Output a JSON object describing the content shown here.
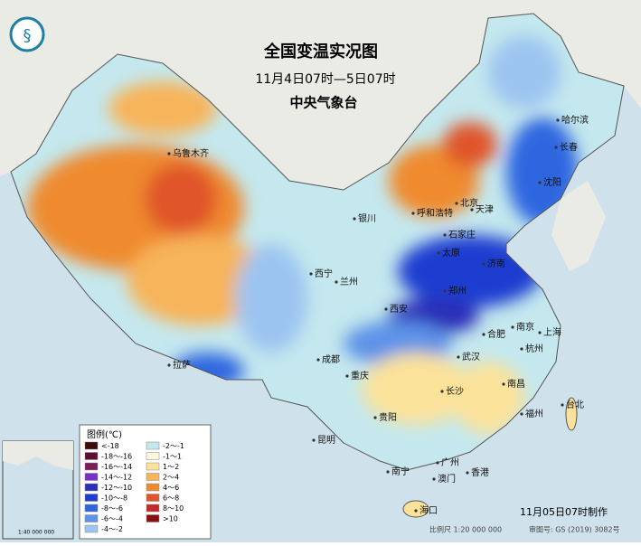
{
  "header": {
    "title": "全国变温实况图",
    "subtitle": "11月4日07时—5日07时",
    "agency": "中央气象台"
  },
  "legend": {
    "title": "图例(℃)",
    "items": [
      {
        "label": "<-18",
        "color": "#3d0a0a"
      },
      {
        "label": "-18～-16",
        "color": "#5c1030"
      },
      {
        "label": "-16～-14",
        "color": "#7a1f5a"
      },
      {
        "label": "-14～-12",
        "color": "#7a2fc8"
      },
      {
        "label": "-12～-10",
        "color": "#2a2fb8"
      },
      {
        "label": "-10～-8",
        "color": "#1f3ed0"
      },
      {
        "label": "-8～-6",
        "color": "#2f66e0"
      },
      {
        "label": "-6～-4",
        "color": "#5d93e8"
      },
      {
        "label": "-4～-2",
        "color": "#9cc4f0"
      },
      {
        "label": "-2～-1",
        "color": "#c4e8ee"
      },
      {
        "label": "-1～1",
        "color": "#fdf7dc"
      },
      {
        "label": "1～2",
        "color": "#fbe29a"
      },
      {
        "label": "2～4",
        "color": "#f7b45a"
      },
      {
        "label": "4～6",
        "color": "#ef8a2e"
      },
      {
        "label": "6～8",
        "color": "#e0552a"
      },
      {
        "label": "8～10",
        "color": "#c42a2a"
      },
      {
        "label": ">10",
        "color": "#8a1010"
      }
    ]
  },
  "cities": [
    "乌鲁木齐",
    "哈尔滨",
    "长春",
    "沈阳",
    "呼和浩特",
    "北京",
    "天津",
    "石家庄",
    "太原",
    "济南",
    "银川",
    "西宁",
    "兰州",
    "郑州",
    "西安",
    "拉萨",
    "成都",
    "重庆",
    "合肥",
    "南京",
    "上海",
    "杭州",
    "武汉",
    "南昌",
    "长沙",
    "贵阳",
    "昆明",
    "福州",
    "台北",
    "南宁",
    "广州",
    "香港",
    "澳门",
    "海口"
  ],
  "inset": {
    "scale": "1:40 000 000"
  },
  "footer": {
    "made": "11月05日07时制作",
    "scale": "比例尺 1:20 000 000",
    "approval": "审图号: GS (2019) 3082号"
  }
}
